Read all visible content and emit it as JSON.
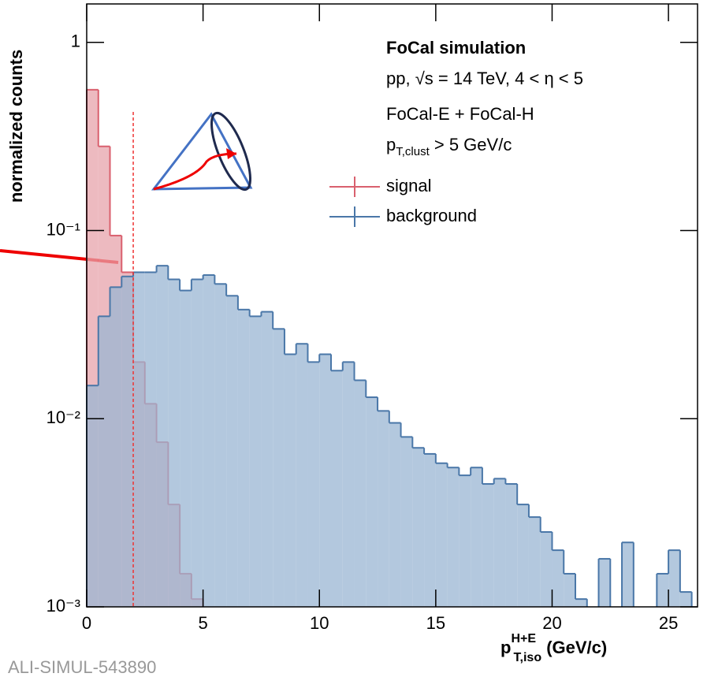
{
  "chart_data": {
    "type": "histogram",
    "title": "FoCal simulation",
    "annotations": [
      "pp, √s = 14 TeV, 4 < η < 5",
      "FoCal-E + FoCal-H",
      {
        "main": "p",
        "sub": "T,clust",
        "rest": " > 5 GeV/c"
      }
    ],
    "x_label": {
      "main": "p",
      "sub": "T,iso",
      "sup": "H+E",
      "rest": " (GeV/c)"
    },
    "y_label": "normalized counts",
    "footnote": "ALI-SIMUL-543890",
    "bins": [
      0,
      0.5,
      1,
      1.5,
      2,
      2.5,
      3,
      3.5,
      4,
      4.5,
      5,
      5.5,
      6,
      6.5,
      7,
      7.5,
      8,
      8.5,
      9,
      9.5,
      10,
      10.5,
      11,
      11.5,
      12,
      12.5,
      13,
      13.5,
      14,
      14.5,
      15,
      15.5,
      16,
      16.5,
      17,
      17.5,
      18,
      18.5,
      19,
      19.5,
      20,
      20.5,
      21,
      21.5,
      22,
      22.5,
      23,
      23.5,
      24,
      24.5,
      25,
      25.5,
      26
    ],
    "series": [
      {
        "name": "signal",
        "color": "#d9606e",
        "fill": "#e7a3ab",
        "values": [
          0.56,
          0.28,
          0.094,
          0.06,
          0.02,
          0.012,
          0.0075,
          0.0035,
          0.0015,
          0.0011,
          null,
          null,
          null,
          null,
          null,
          null,
          null,
          null,
          null,
          null,
          null,
          null,
          null,
          null,
          null,
          null,
          null,
          null,
          null,
          null,
          null,
          null,
          null,
          null,
          null,
          null,
          null,
          null,
          null,
          null,
          null,
          null,
          null,
          null,
          null,
          null,
          null,
          null,
          null,
          null,
          null,
          null
        ]
      },
      {
        "name": "background",
        "color": "#4a77a8",
        "fill": "#9ab6d3",
        "values": [
          0.015,
          0.035,
          0.05,
          0.057,
          0.06,
          0.06,
          0.065,
          0.055,
          0.048,
          0.055,
          0.058,
          0.052,
          0.045,
          0.038,
          0.035,
          0.037,
          0.03,
          0.022,
          0.025,
          0.02,
          0.022,
          0.018,
          0.02,
          0.016,
          0.013,
          0.011,
          0.0095,
          0.008,
          0.007,
          0.0065,
          0.0058,
          0.0055,
          0.005,
          0.0055,
          0.0045,
          0.0048,
          0.0045,
          0.0035,
          0.003,
          0.0025,
          0.002,
          0.0015,
          0.0011,
          null,
          0.0018,
          null,
          0.0022,
          null,
          null,
          0.0015,
          0.002,
          0.0012
        ]
      }
    ],
    "cut_line": 2,
    "xlim": [
      0,
      26.25
    ],
    "xticks": [
      0,
      5,
      10,
      15,
      20,
      25
    ],
    "ylim": [
      0.001,
      1.6
    ],
    "log_y": true,
    "yticks": [
      {
        "value": 0.001,
        "label": "10⁻³"
      },
      {
        "value": 0.01,
        "label": "10⁻²"
      },
      {
        "value": 0.1,
        "label": "10⁻¹"
      },
      1
    ],
    "legend_position": "top-right"
  }
}
